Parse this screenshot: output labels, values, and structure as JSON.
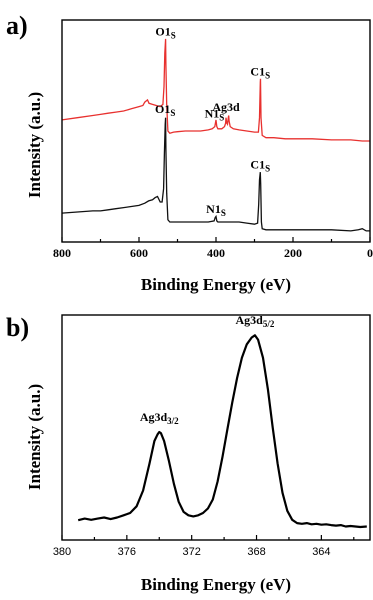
{
  "chart_data": [
    {
      "type": "line",
      "panel_label": "a)",
      "xlabel": "Binding Energy (eV)",
      "ylabel": "Intensity (a.u.)",
      "xlim": [
        800,
        0
      ],
      "x_reversed": true,
      "x_ticks": [
        800,
        600,
        400,
        200,
        0
      ],
      "y_ticks_shown": false,
      "series": [
        {
          "color": "#e8312f",
          "points": [
            [
              800,
              0.55
            ],
            [
              760,
              0.56
            ],
            [
              720,
              0.57
            ],
            [
              700,
              0.575
            ],
            [
              680,
              0.58
            ],
            [
              660,
              0.585
            ],
            [
              640,
              0.59
            ],
            [
              620,
              0.6
            ],
            [
              600,
              0.61
            ],
            [
              590,
              0.615
            ],
            [
              585,
              0.63
            ],
            [
              578,
              0.64
            ],
            [
              574,
              0.625
            ],
            [
              565,
              0.62
            ],
            [
              555,
              0.615
            ],
            [
              545,
              0.61
            ],
            [
              538,
              0.62
            ],
            [
              535,
              0.7
            ],
            [
              533,
              0.85
            ],
            [
              531,
              0.915
            ],
            [
              530,
              0.8
            ],
            [
              528,
              0.62
            ],
            [
              525,
              0.5
            ],
            [
              520,
              0.49
            ],
            [
              510,
              0.495
            ],
            [
              500,
              0.497
            ],
            [
              480,
              0.5
            ],
            [
              460,
              0.5
            ],
            [
              440,
              0.5
            ],
            [
              420,
              0.505
            ],
            [
              410,
              0.51
            ],
            [
              403,
              0.52
            ],
            [
              400,
              0.55
            ],
            [
              398,
              0.52
            ],
            [
              395,
              0.51
            ],
            [
              385,
              0.51
            ],
            [
              378,
              0.52
            ],
            [
              375,
              0.535
            ],
            [
              374,
              0.56
            ],
            [
              372,
              0.535
            ],
            [
              370,
              0.53
            ],
            [
              368,
              0.56
            ],
            [
              367,
              0.57
            ],
            [
              366,
              0.545
            ],
            [
              363,
              0.52
            ],
            [
              355,
              0.51
            ],
            [
              340,
              0.505
            ],
            [
              320,
              0.5
            ],
            [
              300,
              0.495
            ],
            [
              290,
              0.495
            ],
            [
              287,
              0.56
            ],
            [
              285,
              0.72
            ],
            [
              284.5,
              0.735
            ],
            [
              283,
              0.56
            ],
            [
              280,
              0.48
            ],
            [
              270,
              0.47
            ],
            [
              250,
              0.47
            ],
            [
              220,
              0.465
            ],
            [
              200,
              0.465
            ],
            [
              150,
              0.465
            ],
            [
              100,
              0.46
            ],
            [
              50,
              0.46
            ],
            [
              20,
              0.455
            ],
            [
              0,
              0.455
            ]
          ]
        },
        {
          "color": "#111111",
          "points": [
            [
              800,
              0.13
            ],
            [
              760,
              0.135
            ],
            [
              720,
              0.14
            ],
            [
              700,
              0.14
            ],
            [
              680,
              0.145
            ],
            [
              660,
              0.15
            ],
            [
              640,
              0.155
            ],
            [
              620,
              0.16
            ],
            [
              600,
              0.165
            ],
            [
              585,
              0.175
            ],
            [
              575,
              0.185
            ],
            [
              565,
              0.19
            ],
            [
              558,
              0.2
            ],
            [
              552,
              0.205
            ],
            [
              545,
              0.18
            ],
            [
              540,
              0.18
            ],
            [
              536,
              0.24
            ],
            [
              534,
              0.4
            ],
            [
              532,
              0.53
            ],
            [
              531,
              0.56
            ],
            [
              530,
              0.42
            ],
            [
              528,
              0.22
            ],
            [
              525,
              0.1
            ],
            [
              520,
              0.09
            ],
            [
              510,
              0.09
            ],
            [
              480,
              0.09
            ],
            [
              440,
              0.09
            ],
            [
              420,
              0.09
            ],
            [
              405,
              0.095
            ],
            [
              402,
              0.11
            ],
            [
              400,
              0.115
            ],
            [
              398,
              0.095
            ],
            [
              395,
              0.09
            ],
            [
              380,
              0.09
            ],
            [
              360,
              0.09
            ],
            [
              340,
              0.09
            ],
            [
              320,
              0.085
            ],
            [
              300,
              0.08
            ],
            [
              292,
              0.085
            ],
            [
              289,
              0.17
            ],
            [
              287,
              0.28
            ],
            [
              285,
              0.315
            ],
            [
              284,
              0.26
            ],
            [
              282,
              0.09
            ],
            [
              280,
              0.06
            ],
            [
              270,
              0.055
            ],
            [
              250,
              0.055
            ],
            [
              200,
              0.055
            ],
            [
              150,
              0.055
            ],
            [
              100,
              0.055
            ],
            [
              50,
              0.05
            ],
            [
              30,
              0.055
            ],
            [
              20,
              0.06
            ],
            [
              10,
              0.05
            ],
            [
              0,
              0.05
            ]
          ]
        }
      ],
      "annotations": [
        {
          "main": "O1",
          "sub": "S",
          "x": 531,
          "y": 0.93
        },
        {
          "main": "N1",
          "sub": "S",
          "x": 404,
          "y": 0.56
        },
        {
          "main": "Ag3d",
          "sub": "",
          "x": 374,
          "y": 0.59
        },
        {
          "main": "C1",
          "sub": "S",
          "x": 285,
          "y": 0.75
        },
        {
          "main": "O1",
          "sub": "S",
          "x": 532,
          "y": 0.58
        },
        {
          "main": "N1",
          "sub": "S",
          "x": 400,
          "y": 0.13
        },
        {
          "main": "C1",
          "sub": "S",
          "x": 285,
          "y": 0.33
        }
      ]
    },
    {
      "type": "line",
      "panel_label": "b)",
      "xlabel": "Binding Energy (eV)",
      "ylabel": "Intensity (a.u.)",
      "xlim": [
        380,
        361
      ],
      "x_reversed": true,
      "x_ticks": [
        380,
        376,
        372,
        368,
        364
      ],
      "y_ticks_shown": false,
      "series": [
        {
          "color": "#000000",
          "points": [
            [
              379.0,
              0.088
            ],
            [
              378.6,
              0.095
            ],
            [
              378.2,
              0.09
            ],
            [
              377.8,
              0.095
            ],
            [
              377.4,
              0.1
            ],
            [
              377.0,
              0.093
            ],
            [
              376.6,
              0.1
            ],
            [
              376.2,
              0.11
            ],
            [
              375.8,
              0.12
            ],
            [
              375.4,
              0.15
            ],
            [
              375.0,
              0.22
            ],
            [
              374.6,
              0.34
            ],
            [
              374.3,
              0.44
            ],
            [
              374.1,
              0.47
            ],
            [
              374.0,
              0.48
            ],
            [
              373.9,
              0.475
            ],
            [
              373.7,
              0.44
            ],
            [
              373.4,
              0.35
            ],
            [
              373.1,
              0.25
            ],
            [
              372.8,
              0.17
            ],
            [
              372.5,
              0.125
            ],
            [
              372.2,
              0.11
            ],
            [
              371.9,
              0.105
            ],
            [
              371.6,
              0.11
            ],
            [
              371.3,
              0.12
            ],
            [
              371.0,
              0.14
            ],
            [
              370.7,
              0.18
            ],
            [
              370.4,
              0.26
            ],
            [
              370.1,
              0.37
            ],
            [
              369.8,
              0.49
            ],
            [
              369.5,
              0.61
            ],
            [
              369.2,
              0.72
            ],
            [
              368.9,
              0.81
            ],
            [
              368.6,
              0.87
            ],
            [
              368.3,
              0.9
            ],
            [
              368.1,
              0.91
            ],
            [
              367.9,
              0.89
            ],
            [
              367.6,
              0.81
            ],
            [
              367.3,
              0.67
            ],
            [
              367.0,
              0.5
            ],
            [
              366.7,
              0.34
            ],
            [
              366.4,
              0.21
            ],
            [
              366.1,
              0.13
            ],
            [
              365.8,
              0.09
            ],
            [
              365.5,
              0.075
            ],
            [
              365.2,
              0.072
            ],
            [
              364.9,
              0.075
            ],
            [
              364.6,
              0.07
            ],
            [
              364.3,
              0.072
            ],
            [
              364.0,
              0.068
            ],
            [
              363.7,
              0.07
            ],
            [
              363.4,
              0.066
            ],
            [
              363.1,
              0.064
            ],
            [
              362.8,
              0.066
            ],
            [
              362.5,
              0.06
            ],
            [
              362.2,
              0.062
            ],
            [
              361.9,
              0.06
            ],
            [
              361.6,
              0.058
            ],
            [
              361.2,
              0.06
            ]
          ]
        }
      ],
      "annotations": [
        {
          "main": "Ag3d",
          "sub": "3/2",
          "x": 374.0,
          "y": 0.53
        },
        {
          "main": "Ag3d",
          "sub": "5/2",
          "x": 368.1,
          "y": 0.96
        }
      ]
    }
  ]
}
